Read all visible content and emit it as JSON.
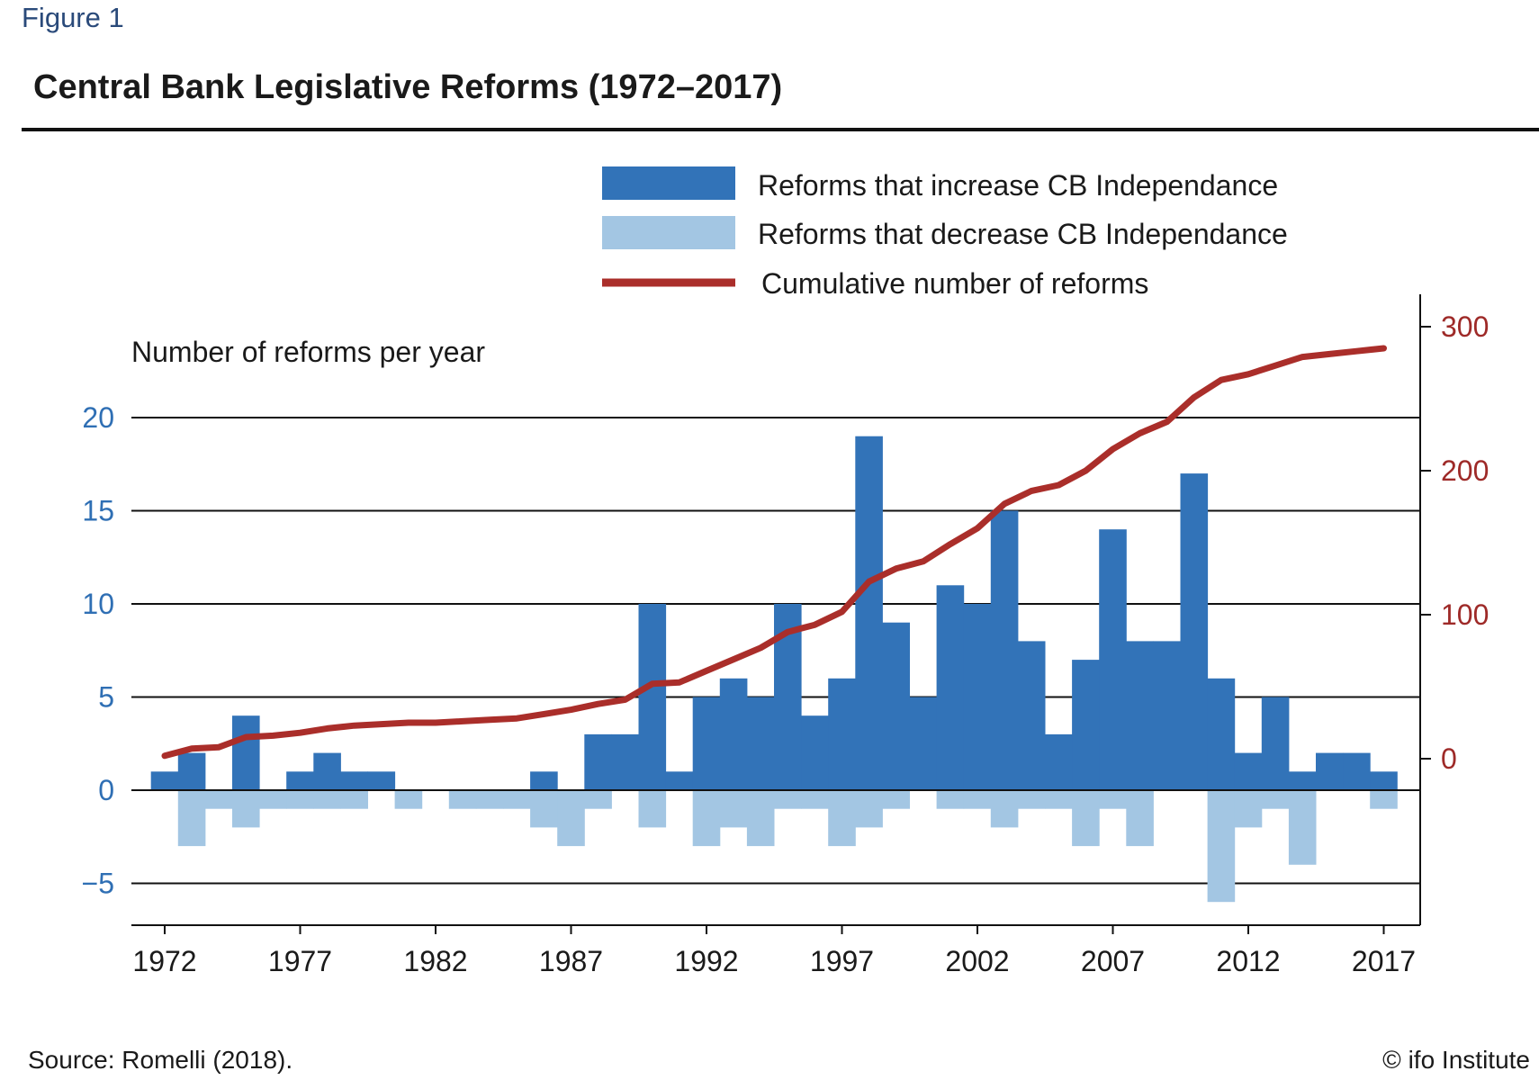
{
  "figure_label": "Figure 1",
  "title": "Central Bank Legislative Reforms (1972–2017)",
  "source": "Source: Romelli (2018).",
  "credit": "© ifo Institute",
  "colors": {
    "increase": "#3273b8",
    "decrease": "#a3c6e3",
    "cumulative": "#aa2e2a",
    "left_axis_text": "#2f6fb4",
    "right_axis_text": "#9e2a28"
  },
  "chart_data": {
    "type": "bar",
    "title": "Central Bank Legislative Reforms (1972–2017)",
    "ylabel": "Number of reforms per year",
    "ylim": [
      -7,
      24
    ],
    "yticks": [
      -5,
      0,
      5,
      10,
      15,
      20
    ],
    "ytick_labels": [
      "−5",
      "0",
      "5",
      "10",
      "15",
      "20"
    ],
    "y2lim": [
      -50,
      320
    ],
    "y2ticks": [
      0,
      100,
      200,
      300
    ],
    "y2tick_labels": [
      "0",
      "100",
      "200",
      "300"
    ],
    "xticks": [
      1972,
      1977,
      1982,
      1987,
      1992,
      1997,
      2002,
      2007,
      2012,
      2017
    ],
    "xtick_labels": [
      "1972",
      "1977",
      "1982",
      "1987",
      "1992",
      "1997",
      "2002",
      "2007",
      "2012",
      "2017"
    ],
    "grid": true,
    "legend_position": "top-right",
    "x": [
      1972,
      1973,
      1974,
      1975,
      1976,
      1977,
      1978,
      1979,
      1980,
      1981,
      1982,
      1983,
      1984,
      1985,
      1986,
      1987,
      1988,
      1989,
      1990,
      1991,
      1992,
      1993,
      1994,
      1995,
      1996,
      1997,
      1998,
      1999,
      2000,
      2001,
      2002,
      2003,
      2004,
      2005,
      2006,
      2007,
      2008,
      2009,
      2010,
      2011,
      2012,
      2013,
      2014,
      2015,
      2016,
      2017
    ],
    "series": [
      {
        "name": "Reforms that increase CB Independance",
        "type": "bar",
        "axis": "left",
        "values": [
          1,
          2,
          0,
          4,
          0,
          1,
          2,
          1,
          1,
          0,
          0,
          0,
          0,
          0,
          1,
          0,
          3,
          3,
          10,
          1,
          5,
          6,
          5,
          10,
          4,
          6,
          19,
          9,
          5,
          11,
          10,
          15,
          8,
          3,
          7,
          14,
          8,
          8,
          17,
          6,
          2,
          5,
          1,
          2,
          2,
          1
        ]
      },
      {
        "name": "Reforms that decrease CB Independance",
        "type": "bar",
        "axis": "left",
        "values": [
          0,
          -3,
          -1,
          -2,
          -1,
          -1,
          -1,
          -1,
          0,
          -1,
          0,
          -1,
          -1,
          -1,
          -2,
          -3,
          -1,
          0,
          -2,
          0,
          -3,
          -2,
          -3,
          -1,
          -1,
          -3,
          -2,
          -1,
          0,
          -1,
          -1,
          -2,
          -1,
          -1,
          -3,
          -1,
          -3,
          0,
          0,
          -6,
          -2,
          -1,
          -4,
          0,
          0,
          -1
        ]
      },
      {
        "name": "Cumulative number of reforms",
        "type": "line",
        "axis": "right",
        "values": [
          2,
          7,
          8,
          15,
          16,
          18,
          21,
          23,
          24,
          25,
          25,
          26,
          27,
          28,
          31,
          34,
          38,
          41,
          52,
          53,
          61,
          69,
          77,
          88,
          93,
          102,
          123,
          132,
          137,
          149,
          160,
          177,
          186,
          190,
          200,
          215,
          226,
          234,
          251,
          263,
          267,
          273,
          279,
          281,
          283,
          285
        ]
      }
    ]
  }
}
